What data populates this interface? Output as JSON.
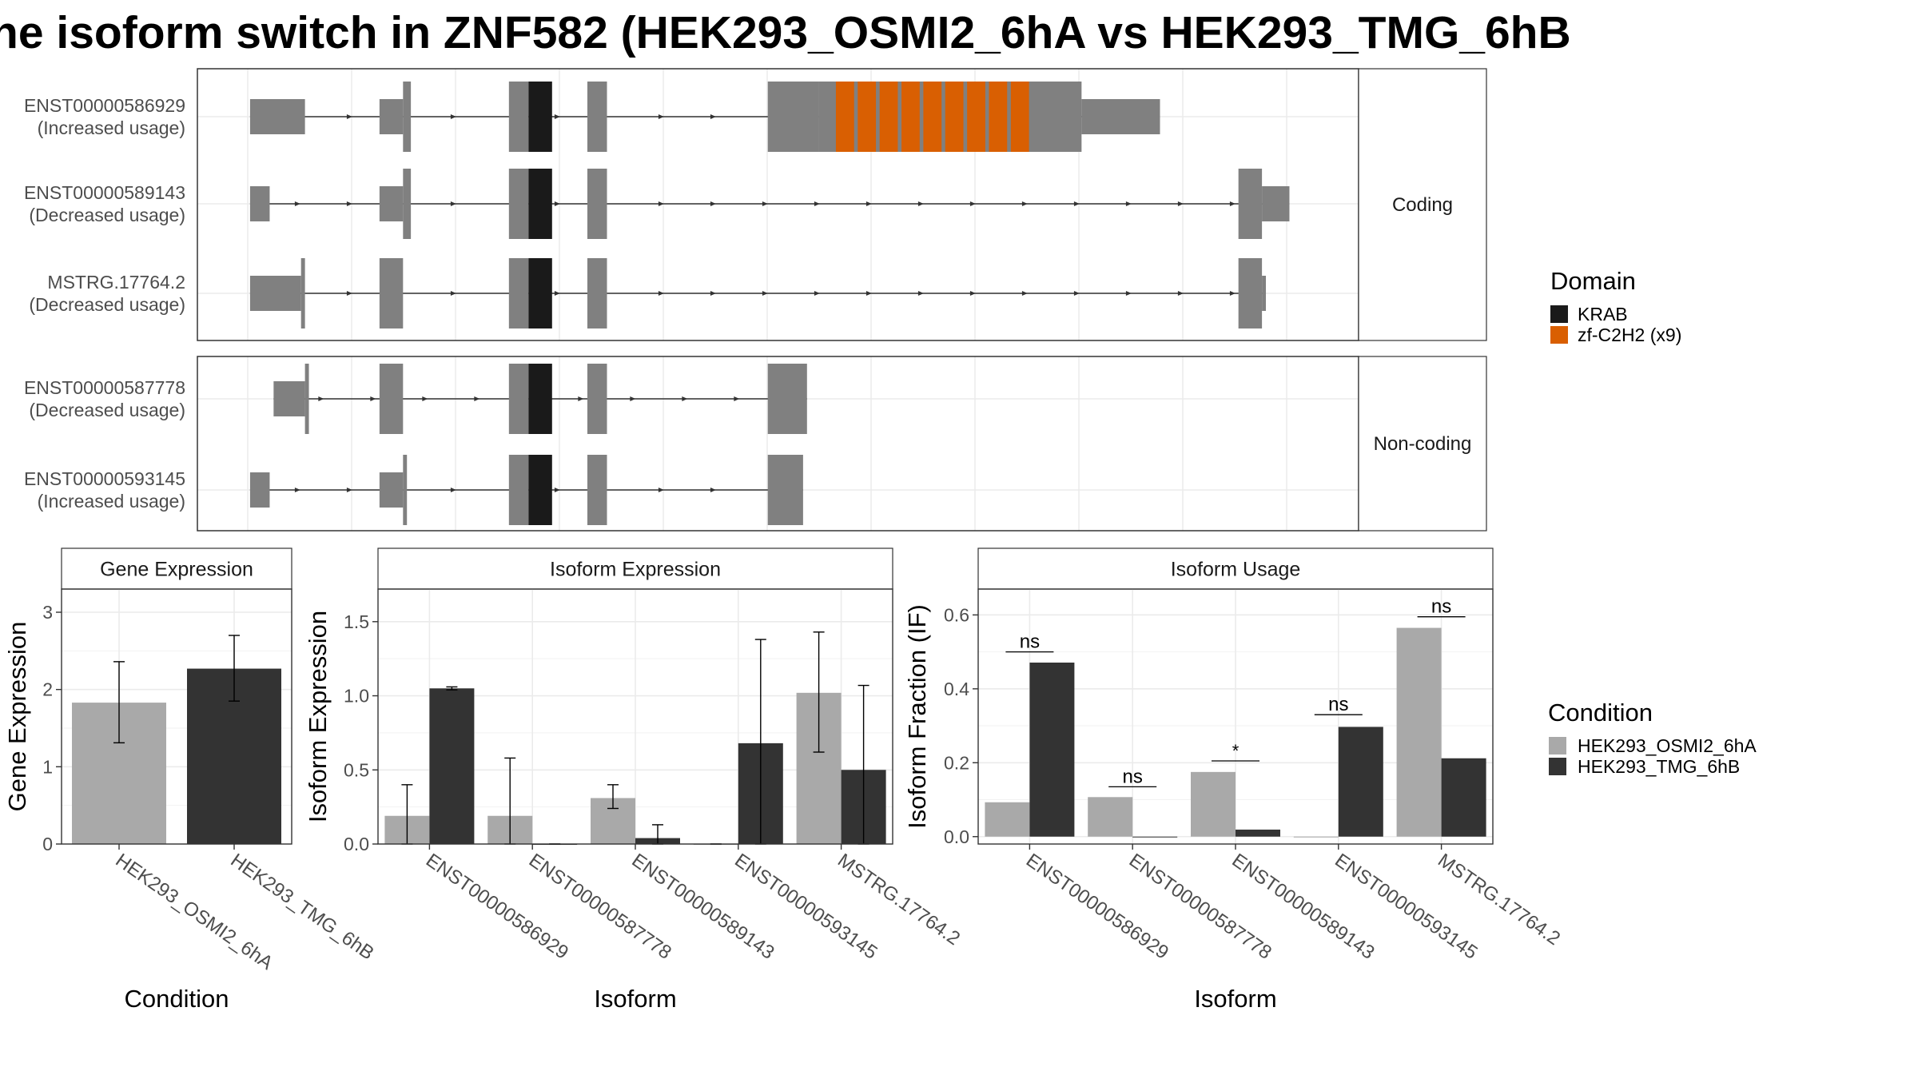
{
  "title": "he isoform switch in ZNF582 (HEK293_OSMI2_6hA vs HEK293_TMG_6hB",
  "colors": {
    "exon": "#808080",
    "krab": "#1a1a1a",
    "znf": "#d95f02",
    "cond1": "#a9a9a9",
    "cond2": "#333333",
    "grid": "#ebebeb",
    "strip": "#ffffff"
  },
  "legends": {
    "domain": {
      "title": "Domain",
      "items": [
        "KRAB",
        "zf-C2H2 (x9)"
      ]
    },
    "condition": {
      "title": "Condition",
      "items": [
        "HEK293_OSMI2_6hA",
        "HEK293_TMG_6hB"
      ]
    }
  },
  "chart_data": [
    {
      "type": "gene-structure",
      "panels": [
        {
          "strip": "Coding",
          "transcripts": [
            {
              "id": "ENST00000586929",
              "note": "(Increased usage)",
              "exons": [
                [
                  1,
                  15,
                  "utr"
                ],
                [
                  34,
                  40,
                  "utr"
                ],
                [
                  40,
                  42,
                  "cds"
                ],
                [
                  67,
                  72,
                  "cds"
                ],
                [
                  72,
                  78,
                  "krab"
                ],
                [
                  87,
                  92,
                  "cds"
                ],
                [
                  133,
                  146,
                  "cds"
                ],
                [
                  146,
                  206,
                  "znf9"
                ],
                [
                  206,
                  213,
                  "cds"
                ],
                [
                  213,
                  233,
                  "utr"
                ]
              ]
            },
            {
              "id": "ENST00000589143",
              "note": "(Decreased usage)",
              "exons": [
                [
                  1,
                  6,
                  "utr"
                ],
                [
                  34,
                  40,
                  "utr"
                ],
                [
                  40,
                  42,
                  "cds"
                ],
                [
                  67,
                  72,
                  "cds"
                ],
                [
                  72,
                  78,
                  "krab"
                ],
                [
                  87,
                  92,
                  "cds"
                ],
                [
                  253,
                  259,
                  "cds"
                ],
                [
                  259,
                  266,
                  "utr"
                ]
              ]
            },
            {
              "id": "MSTRG.17764.2",
              "note": "(Decreased usage)",
              "exons": [
                [
                  1,
                  14,
                  "utr"
                ],
                [
                  14,
                  15,
                  "cds"
                ],
                [
                  34,
                  40,
                  "cds"
                ],
                [
                  67,
                  72,
                  "cds"
                ],
                [
                  72,
                  78,
                  "krab"
                ],
                [
                  87,
                  92,
                  "cds"
                ],
                [
                  253,
                  259,
                  "cds"
                ],
                [
                  259,
                  260,
                  "utr"
                ]
              ]
            }
          ]
        },
        {
          "strip": "Non-coding",
          "transcripts": [
            {
              "id": "ENST00000587778",
              "note": "(Decreased usage)",
              "exons": [
                [
                  7,
                  15,
                  "utr"
                ],
                [
                  15,
                  16,
                  "nc"
                ],
                [
                  34,
                  40,
                  "nc"
                ],
                [
                  67,
                  72,
                  "nc"
                ],
                [
                  72,
                  78,
                  "krab"
                ],
                [
                  87,
                  92,
                  "nc"
                ],
                [
                  133,
                  143,
                  "nc"
                ]
              ]
            },
            {
              "id": "ENST00000593145",
              "note": "(Increased usage)",
              "exons": [
                [
                  1,
                  6,
                  "utr"
                ],
                [
                  34,
                  40,
                  "utr"
                ],
                [
                  40,
                  41,
                  "nc"
                ],
                [
                  67,
                  72,
                  "nc"
                ],
                [
                  72,
                  78,
                  "krab"
                ],
                [
                  87,
                  92,
                  "nc"
                ],
                [
                  133,
                  142,
                  "nc"
                ]
              ]
            }
          ]
        }
      ]
    },
    {
      "type": "bar",
      "strip": "Gene Expression",
      "xlabel": "Condition",
      "ylabel": "Gene Expression",
      "ylim": [
        0,
        3.3
      ],
      "yticks": [
        0,
        1,
        2,
        3
      ],
      "categories": [
        "HEK293_OSMI2_6hA",
        "HEK293_TMG_6hB"
      ],
      "values": [
        1.83,
        2.27
      ],
      "err_low": [
        1.31,
        1.85
      ],
      "err_high": [
        2.36,
        2.7
      ]
    },
    {
      "type": "bar",
      "strip": "Isoform Expression",
      "xlabel": "Isoform",
      "ylabel": "Isoform Expression",
      "ylim": [
        0,
        1.72
      ],
      "yticks": [
        "0.0",
        "0.5",
        "1.0",
        "1.5"
      ],
      "categories": [
        "ENST00000586929",
        "ENST00000587778",
        "ENST00000589143",
        "ENST00000593145",
        "MSTRG.17764.2"
      ],
      "series": [
        {
          "values": [
            0.19,
            0.19,
            0.31,
            0.0,
            1.02
          ],
          "err_low": [
            0.0,
            0.0,
            0.24,
            0.0,
            0.62
          ],
          "err_high": [
            0.4,
            0.58,
            0.4,
            0.0,
            1.43
          ]
        },
        {
          "values": [
            1.05,
            0.0,
            0.04,
            0.68,
            0.5
          ],
          "err_low": [
            1.04,
            0.0,
            0.0,
            0.0,
            0.0
          ],
          "err_high": [
            1.06,
            0.0,
            0.13,
            1.38,
            1.07
          ]
        }
      ]
    },
    {
      "type": "bar",
      "strip": "Isoform Usage",
      "xlabel": "Isoform",
      "ylabel": "Isoform Fraction (IF)",
      "ylim": [
        -0.02,
        0.67
      ],
      "yticks": [
        "0.0",
        "0.2",
        "0.4",
        "0.6"
      ],
      "categories": [
        "ENST00000586929",
        "ENST00000587778",
        "ENST00000589143",
        "ENST00000593145",
        "MSTRG.17764.2"
      ],
      "series": [
        {
          "values": [
            0.093,
            0.107,
            0.175,
            0.0,
            0.565
          ]
        },
        {
          "values": [
            0.471,
            0.0,
            0.019,
            0.297,
            0.212
          ]
        }
      ],
      "significance": [
        {
          "label": "ns",
          "y": 0.5
        },
        {
          "label": "ns",
          "y": 0.135
        },
        {
          "label": "*",
          "y": 0.205
        },
        {
          "label": "ns",
          "y": 0.33
        },
        {
          "label": "ns",
          "y": 0.595
        }
      ]
    }
  ]
}
